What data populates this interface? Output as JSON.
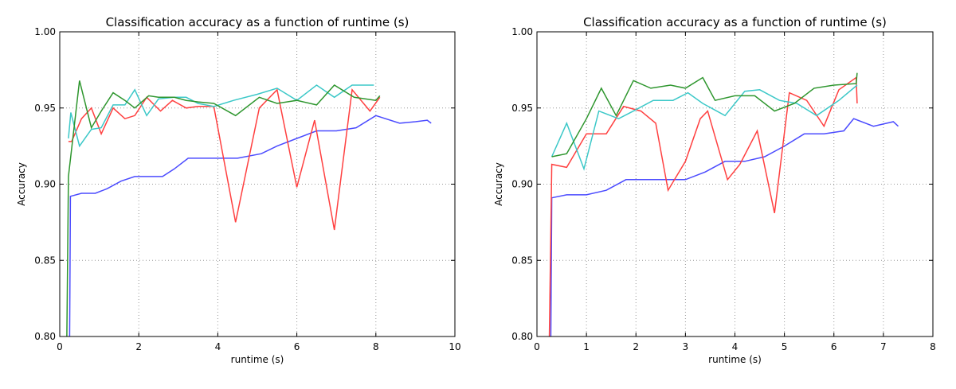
{
  "chart_data": [
    {
      "type": "line",
      "title": "Classification accuracy as a function of runtime (s)",
      "xlabel": "runtime (s)",
      "ylabel": "Accuracy",
      "xlim": [
        0,
        10
      ],
      "ylim": [
        0.8,
        1.0
      ],
      "xticks": [
        "0",
        "2",
        "4",
        "6",
        "8",
        "10"
      ],
      "yticks": [
        "0.80",
        "0.85",
        "0.90",
        "0.95",
        "1.00"
      ],
      "grid": true,
      "series": [
        {
          "color": "#4b4bff",
          "x": [
            0.22,
            0.25,
            0.27,
            0.55,
            0.9,
            1.2,
            1.55,
            1.9,
            2.2,
            2.6,
            2.9,
            3.25,
            3.6,
            4.0,
            4.5,
            5.1,
            5.5,
            6.0,
            6.5,
            7.0,
            7.5,
            8.0,
            8.6,
            9.0,
            9.3,
            9.4
          ],
          "y": [
            0.798,
            0.798,
            0.892,
            0.894,
            0.894,
            0.897,
            0.902,
            0.905,
            0.905,
            0.905,
            0.91,
            0.917,
            0.917,
            0.917,
            0.917,
            0.92,
            0.925,
            0.93,
            0.935,
            0.935,
            0.937,
            0.945,
            0.94,
            0.941,
            0.942,
            0.94
          ]
        },
        {
          "color": "#ff4040",
          "x": [
            0.22,
            0.3,
            0.55,
            0.8,
            1.05,
            1.35,
            1.65,
            1.9,
            2.2,
            2.55,
            2.85,
            3.2,
            3.5,
            3.9,
            4.45,
            5.05,
            5.5,
            6.0,
            6.45,
            6.95,
            7.4,
            7.85,
            8.1
          ],
          "y": [
            0.928,
            0.928,
            0.943,
            0.95,
            0.933,
            0.95,
            0.943,
            0.945,
            0.957,
            0.948,
            0.955,
            0.95,
            0.951,
            0.951,
            0.875,
            0.95,
            0.962,
            0.898,
            0.942,
            0.87,
            0.962,
            0.948,
            0.957
          ]
        },
        {
          "color": "#3cc8c8",
          "x": [
            0.22,
            0.28,
            0.5,
            0.8,
            1.05,
            1.35,
            1.65,
            1.9,
            2.2,
            2.5,
            2.9,
            3.2,
            3.5,
            3.9,
            4.4,
            5.0,
            5.5,
            6.0,
            6.5,
            6.95,
            7.4,
            7.95
          ],
          "y": [
            0.93,
            0.947,
            0.925,
            0.936,
            0.937,
            0.952,
            0.952,
            0.962,
            0.945,
            0.956,
            0.957,
            0.957,
            0.953,
            0.951,
            0.955,
            0.959,
            0.963,
            0.955,
            0.965,
            0.957,
            0.965,
            0.965
          ]
        },
        {
          "color": "#2e962e",
          "x": [
            0.18,
            0.22,
            0.5,
            0.8,
            1.05,
            1.35,
            1.65,
            1.9,
            2.25,
            2.5,
            2.9,
            3.2,
            3.5,
            3.9,
            4.45,
            5.05,
            5.5,
            6.0,
            6.5,
            6.95,
            7.45,
            8.0,
            8.1
          ],
          "y": [
            0.8,
            0.905,
            0.968,
            0.937,
            0.948,
            0.96,
            0.955,
            0.95,
            0.958,
            0.957,
            0.957,
            0.955,
            0.954,
            0.953,
            0.945,
            0.957,
            0.953,
            0.955,
            0.952,
            0.965,
            0.957,
            0.955,
            0.958
          ]
        }
      ]
    },
    {
      "type": "line",
      "title": "Classification accuracy as a function of runtime (s)",
      "xlabel": "runtime (s)",
      "ylabel": "Accuracy",
      "xlim": [
        0,
        8
      ],
      "ylim": [
        0.8,
        1.0
      ],
      "xticks": [
        "0",
        "1",
        "2",
        "3",
        "4",
        "5",
        "6",
        "7",
        "8"
      ],
      "yticks": [
        "0.80",
        "0.85",
        "0.90",
        "0.95",
        "1.00"
      ],
      "grid": true,
      "series": [
        {
          "color": "#4b4bff",
          "x": [
            0.25,
            0.28,
            0.3,
            0.6,
            1.0,
            1.4,
            1.8,
            2.2,
            2.6,
            3.0,
            3.4,
            3.8,
            4.2,
            4.6,
            5.0,
            5.4,
            5.8,
            6.2,
            6.4,
            6.8,
            7.2,
            7.3
          ],
          "y": [
            0.798,
            0.798,
            0.891,
            0.893,
            0.893,
            0.896,
            0.903,
            0.903,
            0.903,
            0.903,
            0.908,
            0.915,
            0.915,
            0.918,
            0.925,
            0.933,
            0.933,
            0.935,
            0.943,
            0.938,
            0.941,
            0.938
          ]
        },
        {
          "color": "#ff4040",
          "x": [
            0.25,
            0.3,
            0.6,
            1.0,
            1.4,
            1.75,
            2.1,
            2.4,
            2.65,
            3.0,
            3.3,
            3.45,
            3.85,
            4.1,
            4.45,
            4.8,
            5.1,
            5.45,
            5.8,
            6.1,
            6.45,
            6.47
          ],
          "y": [
            0.798,
            0.913,
            0.911,
            0.933,
            0.933,
            0.951,
            0.948,
            0.94,
            0.896,
            0.915,
            0.943,
            0.948,
            0.903,
            0.913,
            0.935,
            0.881,
            0.96,
            0.955,
            0.938,
            0.962,
            0.97,
            0.953
          ]
        },
        {
          "color": "#3cc8c8",
          "x": [
            0.3,
            0.6,
            0.95,
            1.25,
            1.65,
            1.95,
            2.35,
            2.75,
            3.05,
            3.35,
            3.8,
            4.2,
            4.5,
            4.9,
            5.25,
            5.65,
            6.1,
            6.47
          ],
          "y": [
            0.918,
            0.94,
            0.91,
            0.948,
            0.943,
            0.948,
            0.955,
            0.955,
            0.96,
            0.953,
            0.945,
            0.961,
            0.962,
            0.955,
            0.953,
            0.945,
            0.955,
            0.965
          ]
        },
        {
          "color": "#2e962e",
          "x": [
            0.3,
            0.6,
            1.0,
            1.3,
            1.6,
            1.95,
            2.3,
            2.7,
            3.0,
            3.35,
            3.6,
            4.0,
            4.4,
            4.8,
            5.2,
            5.6,
            6.0,
            6.45,
            6.47
          ],
          "y": [
            0.918,
            0.92,
            0.943,
            0.963,
            0.945,
            0.968,
            0.963,
            0.965,
            0.963,
            0.97,
            0.955,
            0.958,
            0.958,
            0.948,
            0.953,
            0.963,
            0.965,
            0.966,
            0.973
          ]
        }
      ]
    }
  ]
}
